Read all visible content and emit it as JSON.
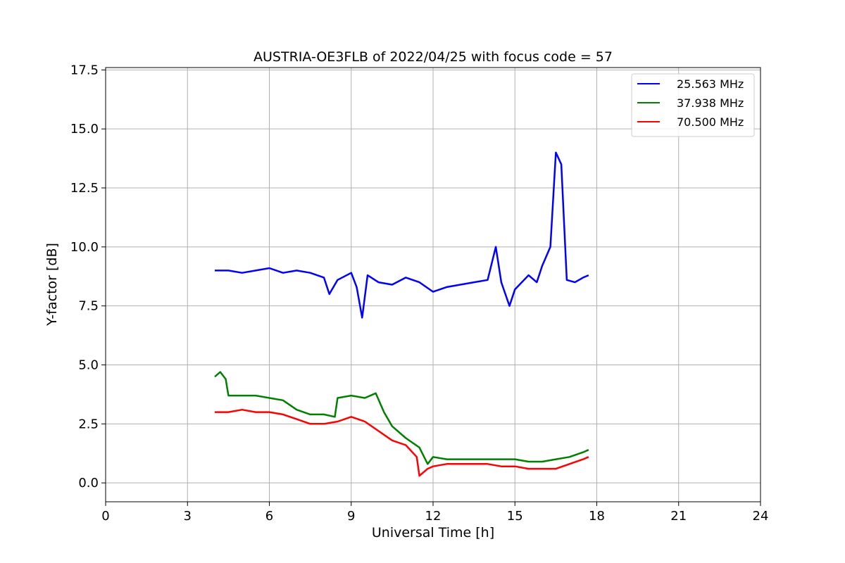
{
  "chart_data": {
    "type": "line",
    "title": "AUSTRIA-OE3FLB of 2022/04/25 with focus code = 57",
    "xlabel": "Universal Time [h]",
    "ylabel": "Y-factor [dB]",
    "xlim": [
      0,
      24
    ],
    "ylim": [
      -0.8,
      17.6
    ],
    "xticks": [
      0,
      3,
      6,
      9,
      12,
      15,
      18,
      21,
      24
    ],
    "xtick_labels": [
      "0",
      "3",
      "6",
      "9",
      "12",
      "15",
      "18",
      "21",
      "24"
    ],
    "yticks": [
      0,
      2.5,
      5,
      7.5,
      10,
      12.5,
      15,
      17.5
    ],
    "ytick_labels": [
      "0.0",
      "2.5",
      "5.0",
      "7.5",
      "10.0",
      "12.5",
      "15.0",
      "17.5"
    ],
    "grid": true,
    "legend_position": "top-right",
    "series": [
      {
        "name": "25.563 MHz",
        "color": "#0000ff",
        "x": [
          4.0,
          4.5,
          5.0,
          5.5,
          6.0,
          6.5,
          7.0,
          7.5,
          8.0,
          8.2,
          8.5,
          9.0,
          9.2,
          9.4,
          9.6,
          10.0,
          10.5,
          11.0,
          11.5,
          12.0,
          12.5,
          13.0,
          13.5,
          14.0,
          14.3,
          14.5,
          14.8,
          15.0,
          15.5,
          15.8,
          16.0,
          16.3,
          16.5,
          16.7,
          16.9,
          17.2,
          17.5,
          17.7
        ],
        "y": [
          9.0,
          9.0,
          8.9,
          9.0,
          9.1,
          8.9,
          9.0,
          8.9,
          8.7,
          8.0,
          8.6,
          8.9,
          8.3,
          7.0,
          8.8,
          8.5,
          8.4,
          8.7,
          8.5,
          8.1,
          8.3,
          8.4,
          8.5,
          8.6,
          10.0,
          8.5,
          7.5,
          8.2,
          8.8,
          8.5,
          9.2,
          10.0,
          14.0,
          13.5,
          8.6,
          8.5,
          8.7,
          8.8
        ]
      },
      {
        "name": "37.938 MHz",
        "color": "#008000",
        "x": [
          4.0,
          4.2,
          4.4,
          4.5,
          5.0,
          5.5,
          6.0,
          6.5,
          7.0,
          7.5,
          8.0,
          8.4,
          8.5,
          9.0,
          9.5,
          9.9,
          10.2,
          10.5,
          11.0,
          11.5,
          11.8,
          12.0,
          12.5,
          13.0,
          13.5,
          14.0,
          14.5,
          15.0,
          15.5,
          16.0,
          16.5,
          17.0,
          17.5,
          17.7
        ],
        "y": [
          4.5,
          4.7,
          4.4,
          3.7,
          3.7,
          3.7,
          3.6,
          3.5,
          3.1,
          2.9,
          2.9,
          2.8,
          3.6,
          3.7,
          3.6,
          3.8,
          3.0,
          2.4,
          1.9,
          1.5,
          0.8,
          1.1,
          1.0,
          1.0,
          1.0,
          1.0,
          1.0,
          1.0,
          0.9,
          0.9,
          1.0,
          1.1,
          1.3,
          1.4
        ]
      },
      {
        "name": "70.500 MHz",
        "color": "#ff0000",
        "x": [
          4.0,
          4.5,
          5.0,
          5.5,
          6.0,
          6.5,
          7.0,
          7.5,
          8.0,
          8.5,
          9.0,
          9.5,
          10.0,
          10.5,
          11.0,
          11.4,
          11.5,
          11.8,
          12.0,
          12.5,
          13.0,
          13.5,
          14.0,
          14.5,
          15.0,
          15.5,
          16.0,
          16.5,
          17.0,
          17.5,
          17.7
        ],
        "y": [
          3.0,
          3.0,
          3.1,
          3.0,
          3.0,
          2.9,
          2.7,
          2.5,
          2.5,
          2.6,
          2.8,
          2.6,
          2.2,
          1.8,
          1.6,
          1.1,
          0.3,
          0.6,
          0.7,
          0.8,
          0.8,
          0.8,
          0.8,
          0.7,
          0.7,
          0.6,
          0.6,
          0.6,
          0.8,
          1.0,
          1.1
        ]
      }
    ]
  }
}
